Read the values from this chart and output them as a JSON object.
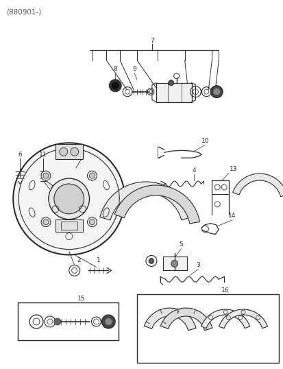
{
  "title": "(880901-)",
  "bg_color": "#ffffff",
  "line_color": "#2a2a2a",
  "text_color": "#2a2a2a",
  "fig_width": 4.14,
  "fig_height": 5.38,
  "dpi": 100
}
